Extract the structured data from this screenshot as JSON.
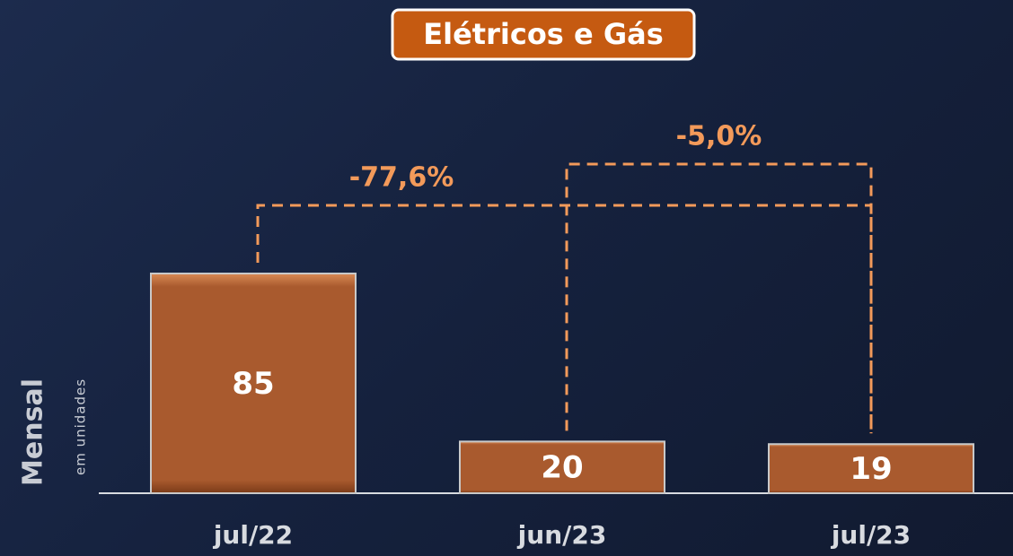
{
  "chart_data": {
    "type": "bar",
    "title": "Elétricos e Gás",
    "y_label": "Mensal",
    "y_sublabel": "em unidades",
    "categories": [
      "jul/22",
      "jun/23",
      "jul/23"
    ],
    "values": [
      85,
      20,
      19
    ],
    "color": "#a95a2e",
    "annotations": [
      "-77,6%",
      "-5,0%"
    ],
    "annotation_color": "#f39a5a"
  }
}
